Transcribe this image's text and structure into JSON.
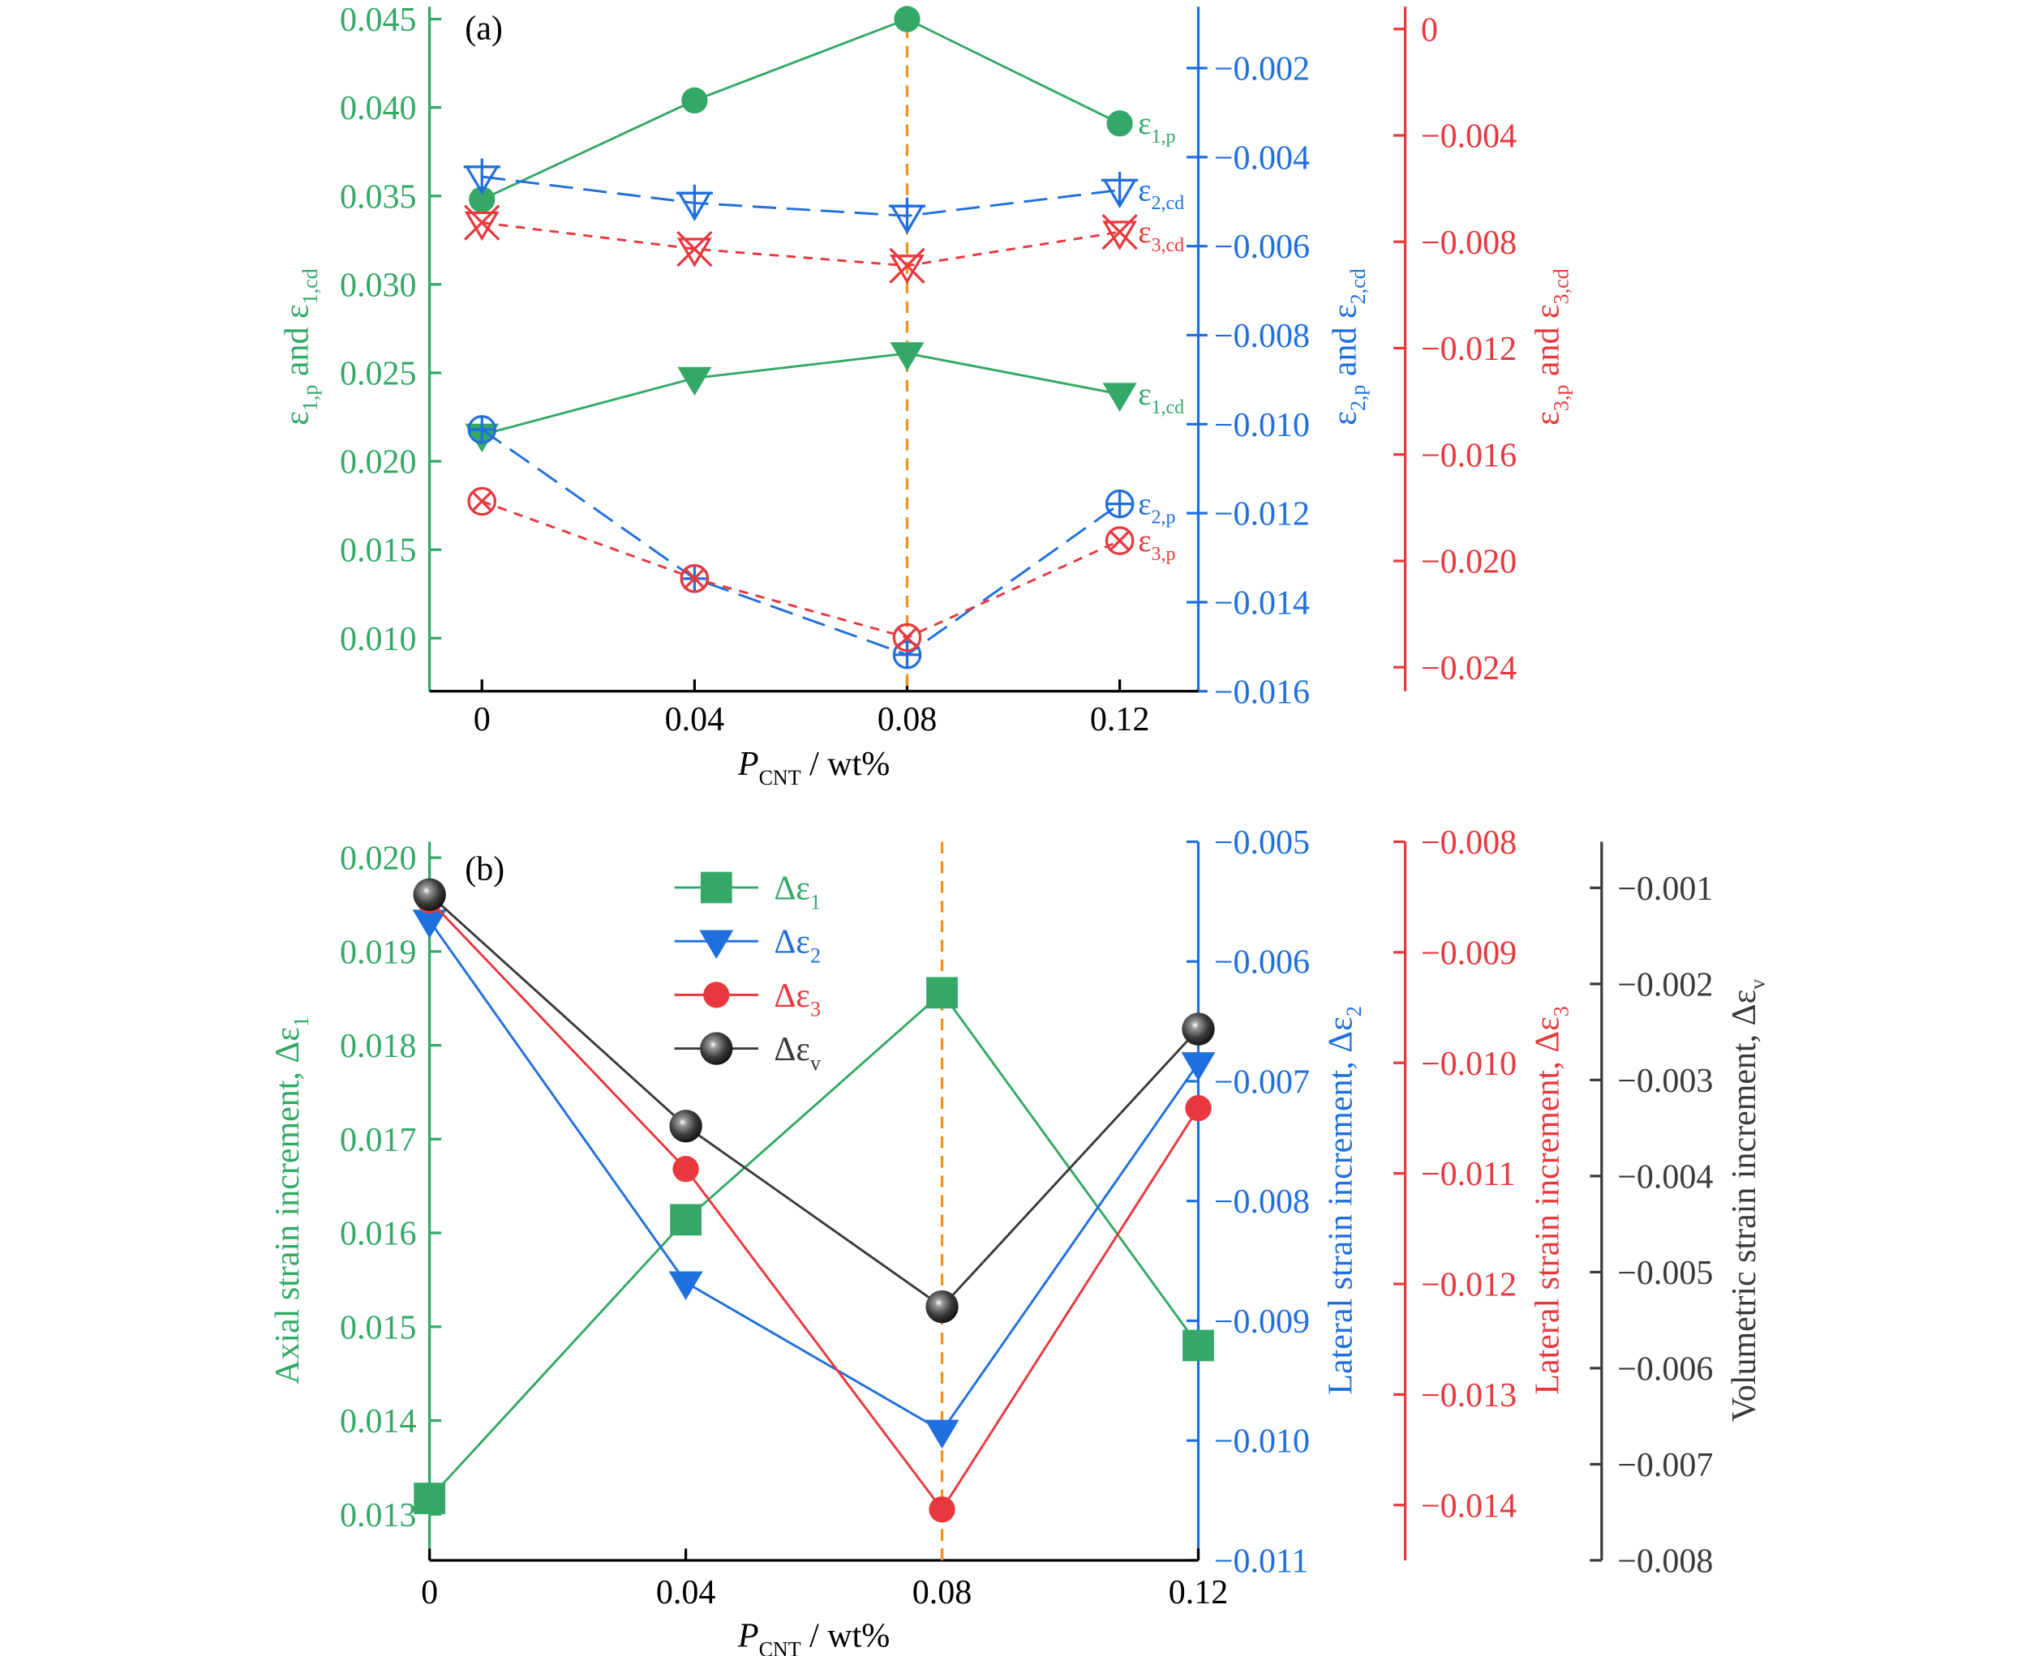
{
  "colors": {
    "green": "#33a867",
    "blue": "#1f6fdc",
    "red": "#e8383d",
    "black": "#3a3a3a",
    "orange": "#f0931e"
  },
  "chart_data": [
    {
      "type": "line",
      "panel_label": "(a)",
      "xlabel": "P_{CNT} / wt%",
      "x": [
        0,
        0.04,
        0.08,
        0.12
      ],
      "xtick_labels": [
        "0",
        "0.04",
        "0.08",
        "0.12"
      ],
      "highlight_x": 0.08,
      "axes": [
        {
          "id": "g",
          "color": "green",
          "label": "ε_{1,p} and ε_{1,cd}",
          "range": [
            0.007,
            0.0457
          ],
          "ticks": [
            0.01,
            0.015,
            0.02,
            0.025,
            0.03,
            0.035,
            0.04,
            0.045
          ],
          "decimals": 3
        },
        {
          "id": "b",
          "color": "blue",
          "label": "ε_{2,p} and ε_{2,cd}",
          "range": [
            -0.016,
            -0.00062
          ],
          "ticks": [
            -0.016,
            -0.014,
            -0.012,
            -0.01,
            -0.008,
            -0.006,
            -0.004,
            -0.002
          ],
          "decimals": 3
        },
        {
          "id": "r",
          "color": "red",
          "label": "ε_{3,p} and ε_{3,cd}",
          "range": [
            -0.0249,
            0.00084
          ],
          "ticks": [
            -0.024,
            -0.02,
            -0.016,
            -0.012,
            -0.008,
            -0.004,
            0
          ],
          "decimals": 3
        }
      ],
      "series": [
        {
          "name": "ε_{1,p}",
          "axis": "g",
          "color": "green",
          "marker": "circle-filled",
          "line": "solid",
          "values": [
            0.0348,
            0.0404,
            0.045,
            0.0391
          ]
        },
        {
          "name": "ε_{1,cd}",
          "axis": "g",
          "color": "green",
          "marker": "triangle-down-filled",
          "line": "solid",
          "values": [
            0.0215,
            0.0247,
            0.0261,
            0.0238
          ]
        },
        {
          "name": "ε_{2,cd}",
          "axis": "b",
          "color": "blue",
          "marker": "triangle-down-plus",
          "line": "longdash",
          "values": [
            -0.00444,
            -0.00503,
            -0.00532,
            -0.00474
          ]
        },
        {
          "name": "ε_{2,p}",
          "axis": "b",
          "color": "blue",
          "marker": "circle-plus",
          "line": "longdash",
          "values": [
            -0.01012,
            -0.01347,
            -0.01518,
            -0.01179
          ]
        },
        {
          "name": "ε_{3,cd}",
          "axis": "r",
          "color": "red",
          "marker": "triangle-down-x",
          "line": "shortdash",
          "values": [
            -0.00728,
            -0.00827,
            -0.0089,
            -0.00763
          ]
        },
        {
          "name": "ε_{3,p}",
          "axis": "r",
          "color": "red",
          "marker": "circle-x",
          "line": "shortdash",
          "values": [
            -0.01776,
            -0.02066,
            -0.02288,
            -0.01924
          ]
        }
      ]
    },
    {
      "type": "line",
      "panel_label": "(b)",
      "xlabel": "P_{CNT} / wt%",
      "x": [
        0,
        0.04,
        0.08,
        0.12
      ],
      "xtick_labels": [
        "0",
        "0.04",
        "0.08",
        "0.12"
      ],
      "highlight_x": 0.08,
      "legend": "top-left",
      "axes": [
        {
          "id": "g",
          "color": "green",
          "label": "Axial strain increment, Δε_{1}",
          "range": [
            0.01251,
            0.02017
          ],
          "ticks": [
            0.013,
            0.014,
            0.015,
            0.016,
            0.017,
            0.018,
            0.019,
            0.02
          ],
          "decimals": 3
        },
        {
          "id": "b",
          "color": "blue",
          "label": "Lateral strain increment, Δε_{2}",
          "range": [
            -0.011,
            -0.005
          ],
          "ticks": [
            -0.011,
            -0.01,
            -0.009,
            -0.008,
            -0.007,
            -0.006,
            -0.005
          ],
          "decimals": 3
        },
        {
          "id": "r",
          "color": "red",
          "label": "Lateral strain increment, Δε_{3}",
          "range": [
            -0.0145,
            -0.008
          ],
          "ticks": [
            -0.014,
            -0.013,
            -0.012,
            -0.011,
            -0.01,
            -0.009,
            -0.008
          ],
          "decimals": 3
        },
        {
          "id": "k",
          "color": "black",
          "label": "Volumetric strain increment, Δε_{v}",
          "range": [
            -0.008,
            -0.00052
          ],
          "ticks": [
            -0.008,
            -0.007,
            -0.006,
            -0.005,
            -0.004,
            -0.003,
            -0.002,
            -0.001
          ],
          "decimals": 3
        }
      ],
      "series": [
        {
          "name": "Δε_{1}",
          "axis": "g",
          "color": "green",
          "marker": "square-filled",
          "line": "solid",
          "values": [
            0.01317,
            0.01614,
            0.01856,
            0.0148
          ]
        },
        {
          "name": "Δε_{2}",
          "axis": "b",
          "color": "blue",
          "marker": "triangle-down-filled",
          "line": "solid",
          "values": [
            -0.00566,
            -0.00868,
            -0.00992,
            -0.00685
          ]
        },
        {
          "name": "Δε_{3}",
          "axis": "r",
          "color": "red",
          "marker": "circle-filled",
          "line": "solid",
          "values": [
            -0.00853,
            -0.01096,
            -0.01404,
            -0.01041
          ]
        },
        {
          "name": "Δε_{v}",
          "axis": "k",
          "color": "black",
          "marker": "sphere",
          "line": "solid",
          "values": [
            -0.00107,
            -0.00348,
            -0.00536,
            -0.00247
          ]
        }
      ]
    }
  ]
}
